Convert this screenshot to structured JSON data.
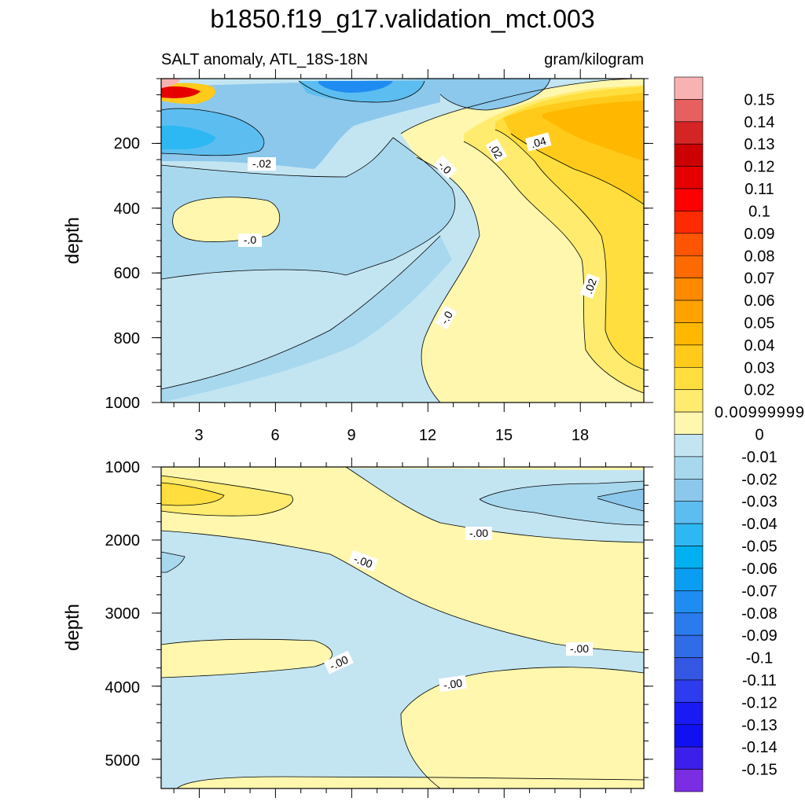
{
  "chart_data": {
    "type": "contour",
    "title": "b1850.f19_g17.validation_mct.003",
    "subtitle_left": "SALT anomaly, ATL_18S-18N",
    "subtitle_right": "gram/kilogram",
    "ylabel": "depth",
    "x_ticks": [
      "3",
      "6",
      "9",
      "12",
      "15",
      "18"
    ],
    "x_values": [
      3,
      6,
      9,
      12,
      15,
      18
    ],
    "x_range": [
      1.5,
      20.5
    ],
    "panels": [
      {
        "name": "upper",
        "ylim": [
          0,
          1000
        ],
        "y_ticks": [
          "200",
          "400",
          "600",
          "800",
          "1000"
        ],
        "y_values": [
          200,
          400,
          600,
          800,
          1000
        ],
        "contour_labels": [
          "-.02",
          "-.0",
          ".02",
          ".04",
          "-.0",
          "-.0",
          ".02"
        ]
      },
      {
        "name": "lower",
        "ylim": [
          1000,
          5400
        ],
        "y_ticks": [
          "1000",
          "2000",
          "3000",
          "4000",
          "5000"
        ],
        "y_values": [
          1000,
          2000,
          3000,
          4000,
          5000
        ],
        "contour_labels": [
          "-.00",
          "-.00",
          "-.00",
          "-.00",
          "-.00"
        ]
      }
    ],
    "colorbar": {
      "labels": [
        "0.15",
        "0.14",
        "0.13",
        "0.12",
        "0.11",
        "0.1",
        "0.09",
        "0.08",
        "0.07",
        "0.06",
        "0.05",
        "0.04",
        "0.03",
        "0.02",
        "0.00999999",
        "0",
        "-0.01",
        "-0.02",
        "-0.03",
        "-0.04",
        "-0.05",
        "-0.06",
        "-0.07",
        "-0.08",
        "-0.09",
        "-0.1",
        "-0.11",
        "-0.12",
        "-0.13",
        "-0.14",
        "-0.15"
      ],
      "colors": [
        "#F9B2B2",
        "#E66060",
        "#D52424",
        "#CC0000",
        "#E60000",
        "#FF0000",
        "#FF2A00",
        "#FF5500",
        "#FF6A00",
        "#FF8A00",
        "#FFA200",
        "#FFB700",
        "#FFCA1A",
        "#FFDE3D",
        "#FFEB6E",
        "#FFF7AE",
        "#C3E5F2",
        "#A8D8EE",
        "#8CC8EC",
        "#5CBEF0",
        "#2EB8F3",
        "#00B0F0",
        "#0A9EF2",
        "#1F8CF2",
        "#2A7BEE",
        "#306BE8",
        "#3458E3",
        "#2E3CF0",
        "#1A1AF5",
        "#1010F0",
        "#3D1FEB",
        "#7A2DE3"
      ]
    }
  }
}
